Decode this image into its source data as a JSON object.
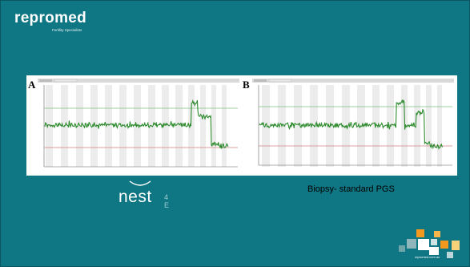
{
  "header": {
    "brand": "repromed",
    "tagline": "Fertility Specialists"
  },
  "figure": {
    "panel_a_letter": "A",
    "panel_b_letter": "B",
    "trace_color": "#2e8b2e",
    "line_color": "#2a6f2a"
  },
  "nest_logo": {
    "word": "nest",
    "suffix": "4 E"
  },
  "caption": "Biopsy- standard PGS",
  "footer": {
    "url": "repromed.com.au"
  },
  "colors": {
    "background": "#0f7684",
    "accent_orange": "#f39a1e",
    "panel": "#ffffff"
  }
}
